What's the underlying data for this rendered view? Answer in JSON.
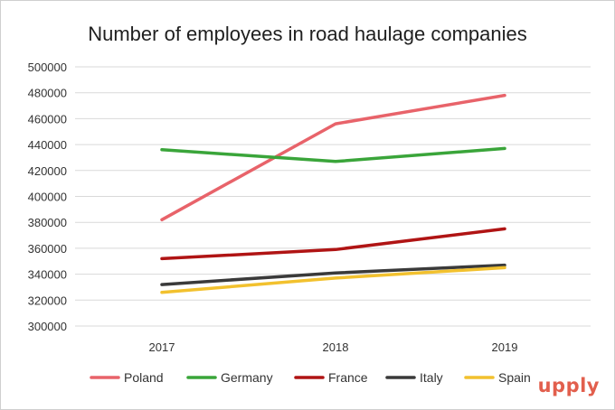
{
  "brand": "upply",
  "chart_data": {
    "type": "line",
    "title": "Number of employees in road haulage companies",
    "xlabel": "",
    "ylabel": "",
    "categories": [
      "2017",
      "2018",
      "2019"
    ],
    "ylim": [
      300000,
      500000
    ],
    "yticks": [
      "300000",
      "320000",
      "340000",
      "360000",
      "380000",
      "400000",
      "420000",
      "440000",
      "460000",
      "480000",
      "500000"
    ],
    "grid": true,
    "legend_position": "bottom",
    "series": [
      {
        "name": "Poland",
        "color": "#e8636a",
        "values": [
          382000,
          456000,
          478000
        ]
      },
      {
        "name": "Germany",
        "color": "#3aa53a",
        "values": [
          436000,
          427000,
          437000
        ]
      },
      {
        "name": "France",
        "color": "#b01414",
        "values": [
          352000,
          359000,
          375000
        ]
      },
      {
        "name": "Italy",
        "color": "#3a3a3a",
        "values": [
          332000,
          341000,
          347000
        ]
      },
      {
        "name": "Spain",
        "color": "#f2c12e",
        "values": [
          326000,
          337000,
          345000
        ]
      }
    ]
  }
}
